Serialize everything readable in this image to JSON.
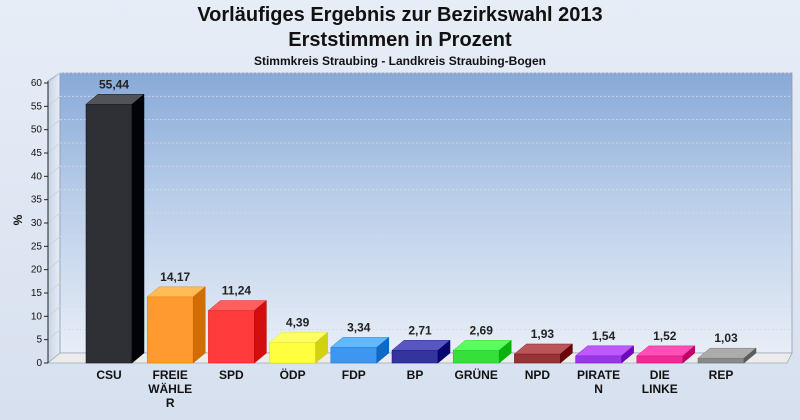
{
  "header": {
    "title_line1": "Vorläufiges Ergebnis zur Bezirkswahl 2013",
    "title_line2": "Erststimmen in Prozent",
    "subtitle": "Stimmkreis Straubing - Landkreis Straubing-Bogen"
  },
  "chart_data": {
    "type": "bar",
    "title": "Vorläufiges Ergebnis zur Bezirkswahl 2013 Erststimmen in Prozent",
    "subtitle": "Stimmkreis Straubing - Landkreis Straubing-Bogen",
    "xlabel": "",
    "ylabel": "%",
    "ylim": [
      0,
      60
    ],
    "yticks": [
      0,
      5,
      10,
      15,
      20,
      25,
      30,
      35,
      40,
      45,
      50,
      55,
      60
    ],
    "grid": true,
    "categories": [
      "CSU",
      "FREIE WÄHLER",
      "SPD",
      "ÖDP",
      "FDP",
      "BP",
      "GRÜNE",
      "NPD",
      "PIRATEN",
      "DIE LINKE",
      "REP"
    ],
    "category_label_lines": [
      [
        "CSU"
      ],
      [
        "FREIE",
        "WÄHLE",
        "R"
      ],
      [
        "SPD"
      ],
      [
        "ÖDP"
      ],
      [
        "FDP"
      ],
      [
        "BP"
      ],
      [
        "GRÜNE"
      ],
      [
        "NPD"
      ],
      [
        "PIRATE",
        "N"
      ],
      [
        "DIE",
        "LINKE"
      ],
      [
        "REP"
      ]
    ],
    "values": [
      55.44,
      14.17,
      11.24,
      4.39,
      3.34,
      2.71,
      2.69,
      1.93,
      1.54,
      1.52,
      1.03
    ],
    "value_labels": [
      "55,44",
      "14,17",
      "11,24",
      "4,39",
      "3,34",
      "2,71",
      "2,69",
      "1,93",
      "1,54",
      "1,52",
      "1,03"
    ],
    "colors": [
      "#2f3035",
      "#ff9a30",
      "#ff3b3b",
      "#ffff40",
      "#3d96f0",
      "#35349e",
      "#36e03a",
      "#973236",
      "#9b35e8",
      "#ee2b95",
      "#898989"
    ]
  }
}
